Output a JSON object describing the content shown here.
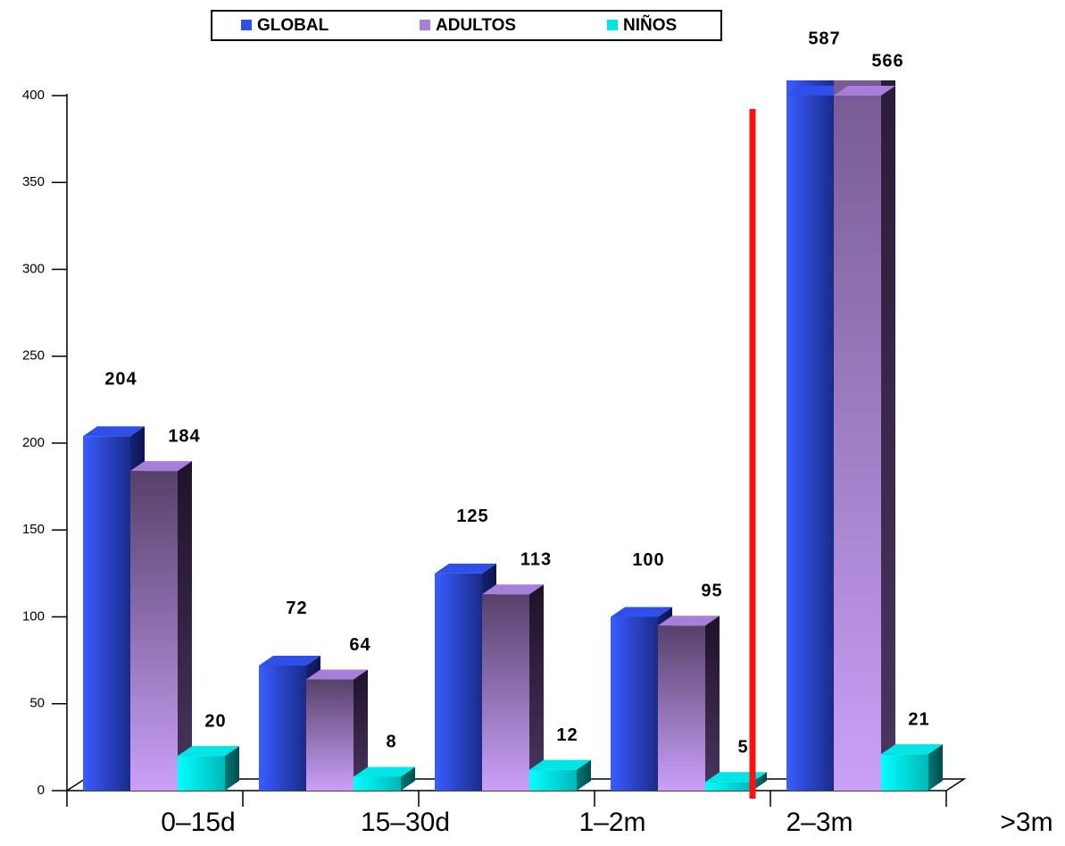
{
  "chart_data": {
    "type": "bar3d",
    "categories": [
      "0–15d",
      "15–30d",
      "1–2m",
      "2–3m",
      ">3m"
    ],
    "series": [
      {
        "name": "GLOBAL",
        "color": "#2f50e8",
        "values": [
          204,
          72,
          125,
          100,
          587
        ]
      },
      {
        "name": "ADULTOS",
        "color": "#a57fd8",
        "values": [
          184,
          64,
          113,
          95,
          566
        ]
      },
      {
        "name": "NIÑOS",
        "color": "#00e5e5",
        "values": [
          20,
          8,
          12,
          5,
          21
        ]
      }
    ],
    "ylim": [
      0,
      400
    ],
    "yticks": [
      0,
      50,
      100,
      150,
      200,
      250,
      300,
      350,
      400
    ],
    "legend": "top"
  }
}
